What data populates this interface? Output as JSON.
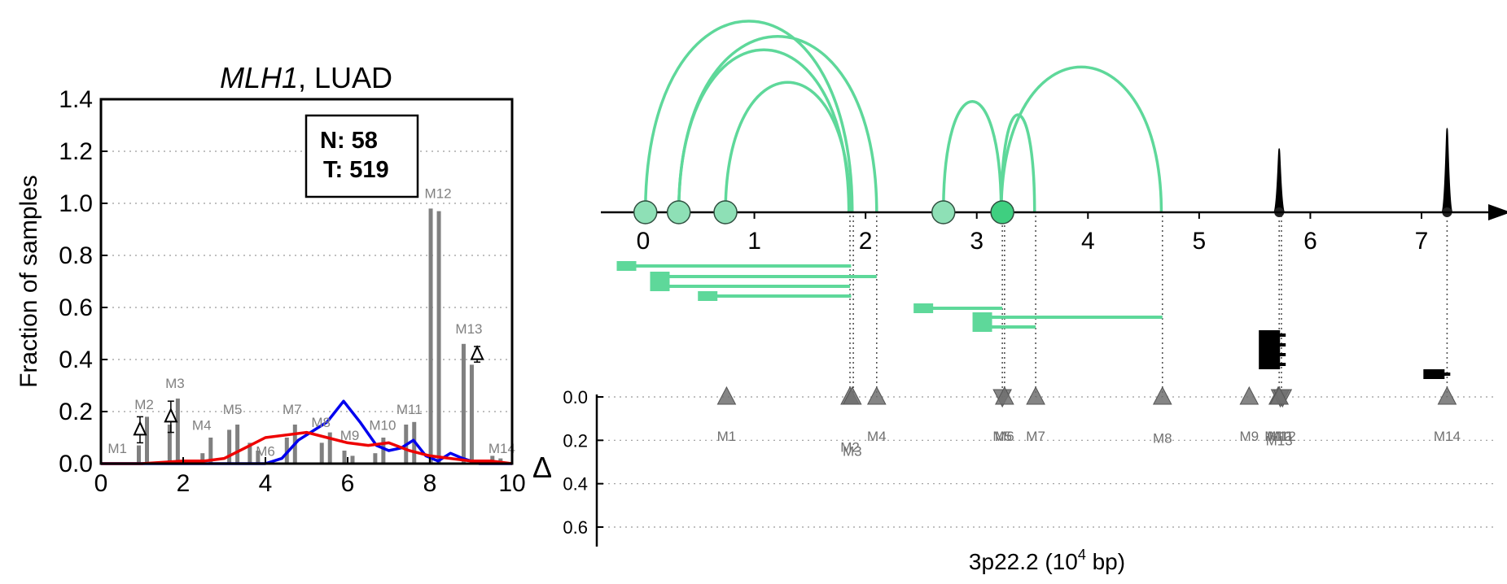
{
  "left_panel": {
    "title_gene": "MLH1",
    "title_rest": ", LUAD",
    "ylabel": "Fraction of samples",
    "box_n": "N: 58",
    "box_t": "T: 519"
  },
  "right_panel": {
    "xlabel_prefix": "3p22.2 (10",
    "xlabel_exp": "4",
    "xlabel_suffix": " bp)",
    "delta_label": "Δ"
  },
  "colors": {
    "bar": "#808080",
    "normal_line": "#0000ee",
    "tumor_line": "#ee0000",
    "arc": "#5ed89a",
    "marker": "#707070",
    "peak": "#000000"
  },
  "chart_data": [
    {
      "type": "bar",
      "xlim": [
        0,
        10
      ],
      "ylim": [
        0,
        1.4
      ],
      "x_ticks": [
        "0",
        "2",
        "4",
        "6",
        "8",
        "10"
      ],
      "y_ticks": [
        "0.0",
        "0.2",
        "0.4",
        "0.6",
        "0.8",
        "1.0",
        "1.2",
        "1.4"
      ],
      "grid_y": true,
      "bars": [
        {
          "x": 1.0,
          "values": [
            0.07,
            0.18
          ]
        },
        {
          "x": 1.75,
          "values": [
            0.15,
            0.25
          ]
        },
        {
          "x": 2.55,
          "values": [
            0.04,
            0.1
          ]
        },
        {
          "x": 3.2,
          "values": [
            0.13,
            0.15
          ]
        },
        {
          "x": 3.7,
          "values": [
            0.08,
            0.05
          ]
        },
        {
          "x": 4.6,
          "values": [
            0.1,
            0.15
          ]
        },
        {
          "x": 5.45,
          "values": [
            0.08,
            0.12
          ]
        },
        {
          "x": 6.0,
          "values": [
            0.05,
            0.03
          ]
        },
        {
          "x": 6.75,
          "values": [
            0.04,
            0.1
          ]
        },
        {
          "x": 7.5,
          "values": [
            0.15,
            0.16
          ]
        },
        {
          "x": 8.1,
          "values": [
            0.98,
            0.97
          ]
        },
        {
          "x": 8.9,
          "values": [
            0.46,
            0.38
          ]
        },
        {
          "x": 9.6,
          "values": [
            0.03,
            0.02
          ]
        }
      ],
      "marker_labels": [
        {
          "name": "M1",
          "x": 0.4,
          "y": 0.04
        },
        {
          "name": "M2",
          "x": 1.05,
          "y": 0.21
        },
        {
          "name": "M3",
          "x": 1.8,
          "y": 0.29
        },
        {
          "name": "M4",
          "x": 2.45,
          "y": 0.13
        },
        {
          "name": "M5",
          "x": 3.2,
          "y": 0.19
        },
        {
          "name": "M6",
          "x": 4.0,
          "y": 0.03
        },
        {
          "name": "M7",
          "x": 4.65,
          "y": 0.19
        },
        {
          "name": "M8",
          "x": 5.35,
          "y": 0.14
        },
        {
          "name": "M9",
          "x": 6.05,
          "y": 0.09
        },
        {
          "name": "M10",
          "x": 6.85,
          "y": 0.13
        },
        {
          "name": "M11",
          "x": 7.5,
          "y": 0.19
        },
        {
          "name": "M12",
          "x": 8.2,
          "y": 1.02
        },
        {
          "name": "M13",
          "x": 8.95,
          "y": 0.5
        },
        {
          "name": "M14",
          "x": 9.75,
          "y": 0.04
        }
      ],
      "deltas": [
        {
          "x": 0.95,
          "y": 0.13,
          "err": 0.05
        },
        {
          "x": 1.7,
          "y": 0.18,
          "err": 0.06
        },
        {
          "x": 9.15,
          "y": 0.42,
          "err": 0.03
        }
      ],
      "series": [
        {
          "name": "N",
          "x": [
            0,
            1,
            2,
            3,
            3.6,
            4.0,
            4.4,
            4.8,
            5.2,
            5.5,
            5.9,
            6.3,
            6.7,
            7.0,
            7.3,
            7.6,
            7.9,
            8.2,
            8.5,
            8.8,
            9.2,
            10
          ],
          "values": [
            0,
            0,
            0,
            0,
            0,
            0,
            0.02,
            0.09,
            0.13,
            0.16,
            0.24,
            0.16,
            0.07,
            0.05,
            0.06,
            0.09,
            0.03,
            0.01,
            0.04,
            0.02,
            0,
            0
          ]
        },
        {
          "name": "T",
          "x": [
            0,
            0.5,
            1.0,
            1.5,
            2.0,
            2.5,
            3.0,
            3.5,
            4.0,
            4.5,
            5.0,
            5.5,
            6.0,
            6.5,
            7.0,
            7.5,
            8.0,
            8.5,
            9.0,
            9.5,
            10
          ],
          "values": [
            0,
            0,
            0,
            0.005,
            0.01,
            0.01,
            0.02,
            0.06,
            0.1,
            0.11,
            0.12,
            0.1,
            0.08,
            0.07,
            0.08,
            0.05,
            0.03,
            0.02,
            0.01,
            0.01,
            0
          ]
        }
      ]
    },
    {
      "type": "scatter",
      "xlim": [
        0,
        7.7
      ],
      "x_ticks": [
        "0",
        "1",
        "2",
        "3",
        "4",
        "5",
        "6",
        "7"
      ],
      "y_ticks": [
        "0.0",
        "0.2",
        "0.4",
        "0.6"
      ],
      "ylim": [
        0,
        0.7
      ],
      "grid_y": true,
      "nodes": [
        {
          "x": 0.02,
          "highlight": false
        },
        {
          "x": 0.32,
          "highlight": false
        },
        {
          "x": 0.74,
          "highlight": false
        },
        {
          "x": 2.7,
          "highlight": false
        },
        {
          "x": 3.23,
          "highlight": true
        }
      ],
      "arcs": [
        {
          "from": 0.02,
          "to": 1.88,
          "height": 1.0
        },
        {
          "from": 0.32,
          "to": 2.1,
          "height": 0.92
        },
        {
          "from": 0.32,
          "to": 1.85,
          "height": 0.85
        },
        {
          "from": 0.74,
          "to": 1.86,
          "height": 0.68
        },
        {
          "from": 2.7,
          "to": 3.22,
          "height": 0.58
        },
        {
          "from": 3.22,
          "to": 3.52,
          "height": 0.51
        },
        {
          "from": 3.22,
          "to": 4.66,
          "height": 0.76
        }
      ],
      "segments": [
        {
          "from": -0.15,
          "to": 1.87,
          "level": 0
        },
        {
          "from": 0.15,
          "to": 2.1,
          "level": 1
        },
        {
          "from": 0.15,
          "to": 1.86,
          "level": 2
        },
        {
          "from": 0.58,
          "to": 1.87,
          "level": 3
        },
        {
          "from": 2.52,
          "to": 3.23,
          "level": 4
        },
        {
          "from": 3.05,
          "to": 4.67,
          "level": 5
        },
        {
          "from": 3.05,
          "to": 3.53,
          "level": 6
        }
      ],
      "peaks": [
        {
          "x": 5.72,
          "height": 1.0
        },
        {
          "x": 7.23,
          "height": 1.32
        }
      ],
      "black_blocks": [
        {
          "x": 5.72,
          "level": 0
        },
        {
          "x": 5.72,
          "level": 1
        },
        {
          "x": 5.72,
          "level": 2
        },
        {
          "x": 5.72,
          "level": 3
        },
        {
          "x": 7.2,
          "level": 4
        }
      ],
      "guide_x": [
        1.86,
        1.89,
        2.1,
        3.23,
        3.25,
        3.53,
        4.67,
        5.72,
        5.74,
        7.23
      ],
      "markers": [
        {
          "name": "M1",
          "x": 0.75,
          "dir": "up",
          "y": 0.0,
          "label_y": 0.18
        },
        {
          "name": "M2",
          "x": 1.86,
          "dir": "up",
          "y": 0.0,
          "label_y": 0.23
        },
        {
          "name": "M3",
          "x": 1.88,
          "dir": "up",
          "y": 0.0,
          "label_y": 0.25
        },
        {
          "name": "M4",
          "x": 2.1,
          "dir": "up",
          "y": 0.0,
          "label_y": 0.18
        },
        {
          "name": "M5",
          "x": 3.23,
          "dir": "down",
          "y": 0.0,
          "label_y": 0.18
        },
        {
          "name": "M6",
          "x": 3.25,
          "dir": "up",
          "y": 0.0,
          "label_y": 0.18
        },
        {
          "name": "M7",
          "x": 3.53,
          "dir": "up",
          "y": 0.0,
          "label_y": 0.18
        },
        {
          "name": "M8",
          "x": 4.67,
          "dir": "up",
          "y": 0.0,
          "label_y": 0.19
        },
        {
          "name": "M9",
          "x": 5.45,
          "dir": "up",
          "y": 0.0,
          "label_y": 0.18
        },
        {
          "name": "M10",
          "x": 5.71,
          "dir": "up",
          "y": 0.0,
          "label_y": 0.18
        },
        {
          "name": "M11",
          "x": 5.73,
          "dir": "down",
          "y": 0.0,
          "label_y": 0.18
        },
        {
          "name": "M12",
          "x": 5.75,
          "dir": "down",
          "y": 0.0,
          "label_y": 0.18
        },
        {
          "name": "M13",
          "x": 5.72,
          "dir": "up",
          "y": 0.0,
          "label_y": 0.2
        },
        {
          "name": "M14",
          "x": 7.23,
          "dir": "up",
          "y": 0.0,
          "label_y": 0.18
        }
      ]
    }
  ]
}
